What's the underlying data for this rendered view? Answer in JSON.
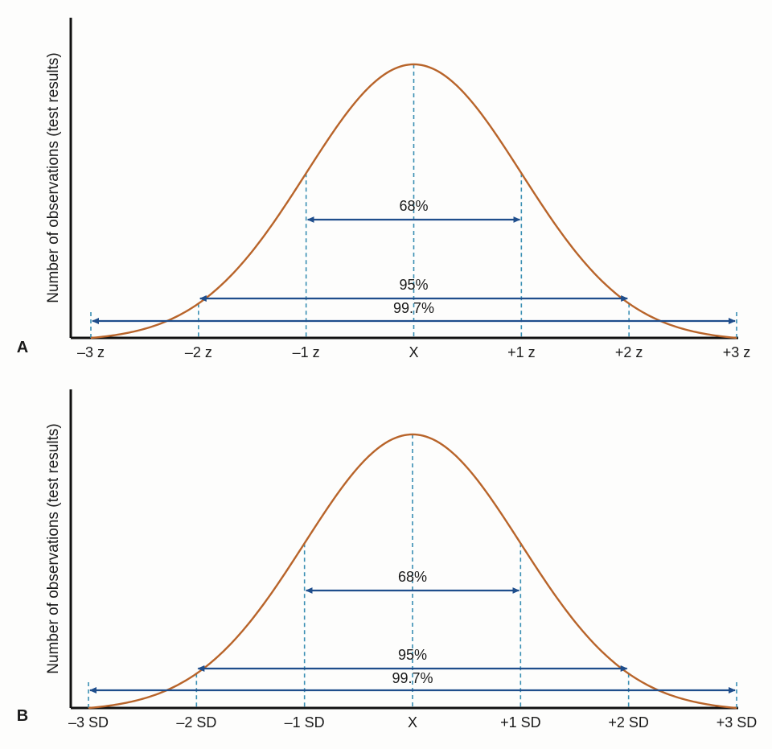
{
  "colors": {
    "curve": "#b8642a",
    "arrow": "#1f4e8c",
    "guide": "#3a8fb3",
    "axis": "#111111",
    "text": "#1a1a1a"
  },
  "chart_data": [
    {
      "type": "line",
      "panel_label": "A",
      "ylabel": "Number of observations (test results)",
      "xlabel": "",
      "categories": [
        "–3 z",
        "–2 z",
        "–1 z",
        "X",
        "+1 z",
        "+2 z",
        "+3 z"
      ],
      "xlim": [
        -3,
        3
      ],
      "curve": "normal distribution (bell curve)",
      "intervals": [
        {
          "label": "68%",
          "from": -1,
          "to": 1
        },
        {
          "label": "95%",
          "from": -2,
          "to": 2
        },
        {
          "label": "99.7%",
          "from": -3,
          "to": 3
        }
      ]
    },
    {
      "type": "line",
      "panel_label": "B",
      "ylabel": "Number of observations (test results)",
      "xlabel": "",
      "categories": [
        "–3 SD",
        "–2 SD",
        "–1 SD",
        "X",
        "+1 SD",
        "+2 SD",
        "+3 SD"
      ],
      "xlim": [
        -3,
        3
      ],
      "curve": "normal distribution (bell curve)",
      "intervals": [
        {
          "label": "68%",
          "from": -1,
          "to": 1
        },
        {
          "label": "95%",
          "from": -2,
          "to": 2
        },
        {
          "label": "99.7%",
          "from": -3,
          "to": 3
        }
      ]
    }
  ]
}
